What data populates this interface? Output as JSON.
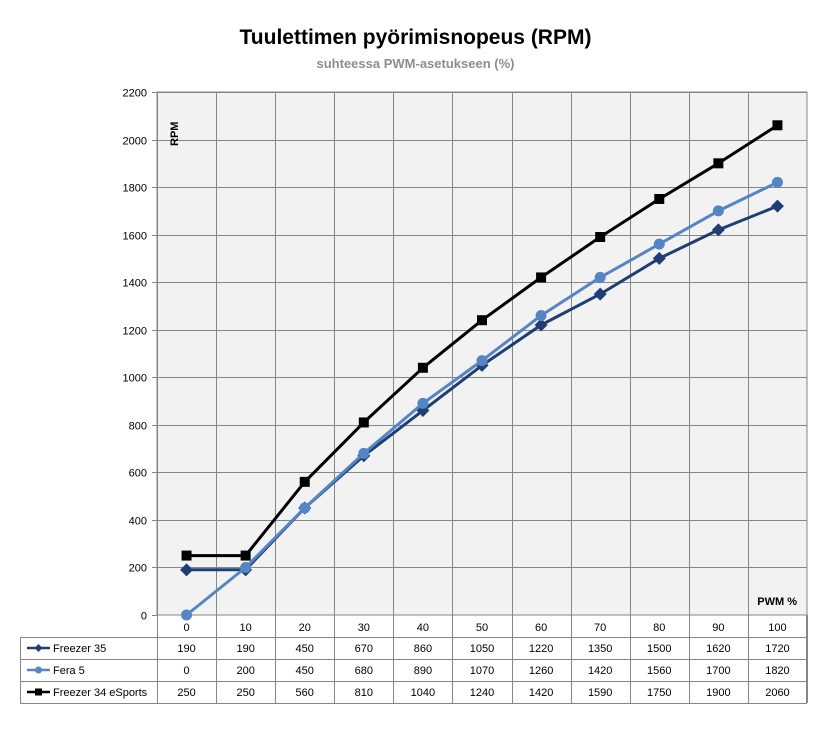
{
  "chart_data": {
    "type": "line",
    "title": "Tuulettimen pyörimisnopeus (RPM)",
    "subtitle": "suhteessa PWM-asetukseen (%)",
    "xlabel": "PWM %",
    "ylabel": "RPM",
    "x": [
      "0",
      "10",
      "20",
      "30",
      "40",
      "50",
      "60",
      "70",
      "80",
      "90",
      "100"
    ],
    "ylim": [
      0,
      2200
    ],
    "yticks": [
      "0",
      "200",
      "400",
      "600",
      "800",
      "1000",
      "1200",
      "1400",
      "1600",
      "1800",
      "2000",
      "2200"
    ],
    "grid": true,
    "legend": "data-table",
    "series": [
      {
        "name": "Freezer 35",
        "color": "#1f3f74",
        "marker": "diamond",
        "values": [
          190,
          190,
          450,
          670,
          860,
          1050,
          1220,
          1350,
          1500,
          1620,
          1720
        ]
      },
      {
        "name": "Fera 5",
        "color": "#5585c5",
        "marker": "circle",
        "values": [
          0,
          200,
          450,
          680,
          890,
          1070,
          1260,
          1420,
          1560,
          1700,
          1820
        ]
      },
      {
        "name": "Freezer 34 eSports",
        "color": "#000000",
        "marker": "square",
        "values": [
          250,
          250,
          560,
          810,
          1040,
          1240,
          1420,
          1590,
          1750,
          1900,
          2060
        ]
      }
    ]
  }
}
